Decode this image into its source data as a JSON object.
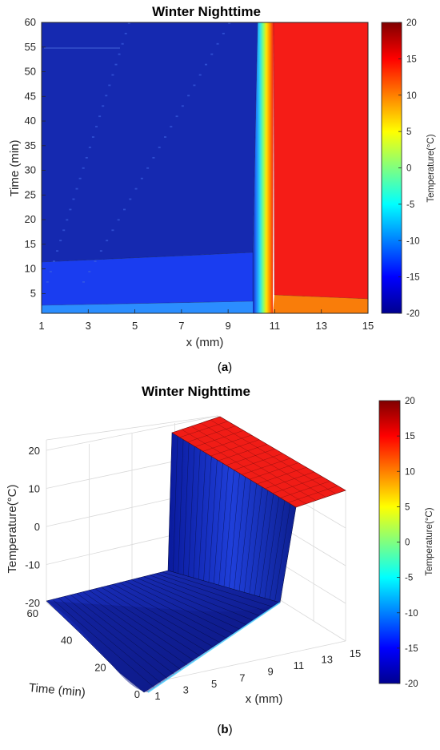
{
  "chart_data": [
    {
      "panel": "a",
      "type": "heatmap",
      "subtype": "filled-contour",
      "title": "Winter Nighttime",
      "xlabel": "x (mm)",
      "ylabel": "Time (min)",
      "xlim": [
        1,
        15
      ],
      "ylim": [
        1,
        60
      ],
      "xticks": [
        1,
        3,
        5,
        7,
        9,
        11,
        13,
        15
      ],
      "yticks": [
        5,
        10,
        15,
        20,
        25,
        30,
        35,
        40,
        45,
        50,
        55,
        60
      ],
      "colorbar": {
        "label": "Temperature(°C)",
        "colormap": "jet",
        "limits": [
          -20,
          20
        ],
        "ticks": [
          20,
          15,
          10,
          5,
          0,
          -5,
          -10,
          -15,
          -20
        ]
      },
      "regions": [
        {
          "name": "cold-layer-steady",
          "x": [
            1,
            10.2
          ],
          "t": [
            12,
            60
          ],
          "temperature": -19
        },
        {
          "name": "cold-layer-transient",
          "x": [
            1,
            10.2
          ],
          "t": [
            1,
            12
          ],
          "temperature": -16
        },
        {
          "name": "transition",
          "x": [
            10.2,
            11
          ],
          "t": [
            1,
            60
          ],
          "temperature_range": [
            -15,
            15
          ]
        },
        {
          "name": "warm-layer-steady",
          "x": [
            11,
            15
          ],
          "t": [
            4,
            60
          ],
          "temperature": 17
        },
        {
          "name": "warm-layer-transient",
          "x": [
            11,
            15
          ],
          "t": [
            1,
            4
          ],
          "temperature": 14
        }
      ],
      "caption": "(a)"
    },
    {
      "panel": "b",
      "type": "surface",
      "title": "Winter Nighttime",
      "xlabel": "x (mm)",
      "ylabel": "Time (min)",
      "zlabel": "Temperature(°C)",
      "xlim": [
        1,
        15
      ],
      "ylim": [
        0,
        60
      ],
      "zlim": [
        -20,
        20
      ],
      "xticks": [
        1,
        3,
        5,
        7,
        9,
        11,
        13,
        15
      ],
      "yticks": [
        0,
        20,
        40,
        60
      ],
      "zticks": [
        20,
        10,
        0,
        -10,
        -20
      ],
      "colorbar": {
        "label": "Temperature(°C)",
        "colormap": "jet",
        "limits": [
          -20,
          20
        ],
        "ticks": [
          20,
          15,
          10,
          5,
          0,
          -5,
          -10,
          -15,
          -20
        ]
      },
      "profile": {
        "x": [
          1,
          3,
          5,
          7,
          9,
          10,
          10.5,
          11,
          13,
          15
        ],
        "temperature": [
          -20,
          -20,
          -20,
          -20,
          -19,
          -17,
          0,
          18,
          19,
          20
        ]
      },
      "caption": "(b)"
    }
  ],
  "colors": {
    "jet": [
      "#00008f",
      "#0000ff",
      "#00ffff",
      "#ffff00",
      "#ff0000",
      "#800000"
    ],
    "cold": "#1529b0",
    "cold_transient": "#1a3df0",
    "warm": "#f51c17",
    "warm_transient": "#f97d0a"
  }
}
